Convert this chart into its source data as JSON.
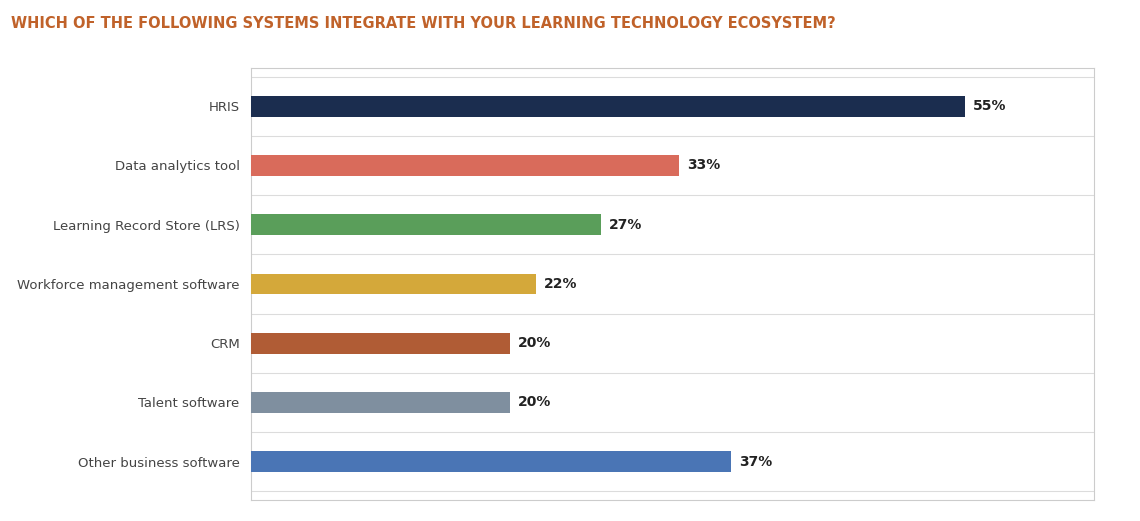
{
  "title": "WHICH OF THE FOLLOWING SYSTEMS INTEGRATE WITH YOUR LEARNING TECHNOLOGY ECOSYSTEM?",
  "title_color": "#c0622a",
  "title_fontsize": 10.5,
  "categories": [
    "HRIS",
    "Data analytics tool",
    "Learning Record Store (LRS)",
    "Workforce management software",
    "CRM",
    "Talent software",
    "Other business software"
  ],
  "values": [
    55,
    33,
    27,
    22,
    20,
    20,
    37
  ],
  "bar_colors": [
    "#1b2d4f",
    "#d96b5b",
    "#5a9e5a",
    "#d4a83a",
    "#b05c35",
    "#7f8f9f",
    "#4a75b5"
  ],
  "xlim": [
    0,
    65
  ],
  "bar_height": 0.35,
  "label_fontsize": 9.5,
  "value_fontsize": 10,
  "background_color": "#ffffff",
  "plot_bg_color": "#ffffff",
  "grid_color": "#dcdcdc",
  "text_color": "#444444",
  "value_label_color": "#222222",
  "border_color": "#cccccc"
}
